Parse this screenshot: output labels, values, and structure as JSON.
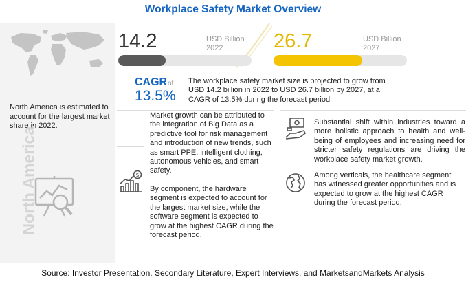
{
  "title": "Workplace Safety Market Overview",
  "left_panel": {
    "description": "North America is estimated to account for the largest market share in 2022.",
    "region_label": "North America",
    "icons": [
      "world-map-icon",
      "analytics-board-icon"
    ]
  },
  "chart_data": {
    "type": "bar",
    "categories": [
      "2022",
      "2027"
    ],
    "values": [
      14.2,
      26.7
    ],
    "value_labels": [
      "14.2",
      "26.7"
    ],
    "unit": "USD Billion",
    "colors": [
      "#5a5a5a",
      "#f5c400"
    ]
  },
  "cagr": {
    "label": "CAGR",
    "of": "of",
    "value": "13.5%",
    "description": "The workplace safety market size is projected to grow from USD 14.2 billion in 2022 to USD 26.7 billion by 2027, at a CAGR of 13.5% during the forecast period."
  },
  "insights": {
    "growth": "Market growth can be attributed to the integration of Big Data as a predictive tool for risk management and introduction of new trends, such as smart PPE, intelligent clothing, autonomous vehicles, and smart safety.",
    "component": "By component, the hardware segment is expected to account for the largest market size, while the software segment is expected to grow at the highest CAGR during the forecast period.",
    "shift": "Substantial shift within industries toward a more holistic approach to health and well-being of employees and increasing need for stricter safety regulations are driving the workplace safety market growth.",
    "verticals": "Among verticals, the healthcare segment has witnessed greater opportunities and is expected to grow at the highest CAGR during the forecast period.",
    "icons": [
      "growth-chart-icon",
      "money-hand-icon",
      "globe-icon"
    ]
  },
  "source": "Source: Investor Presentation, Secondary Literature, Expert Interviews, and MarketsandMarkets Analysis"
}
